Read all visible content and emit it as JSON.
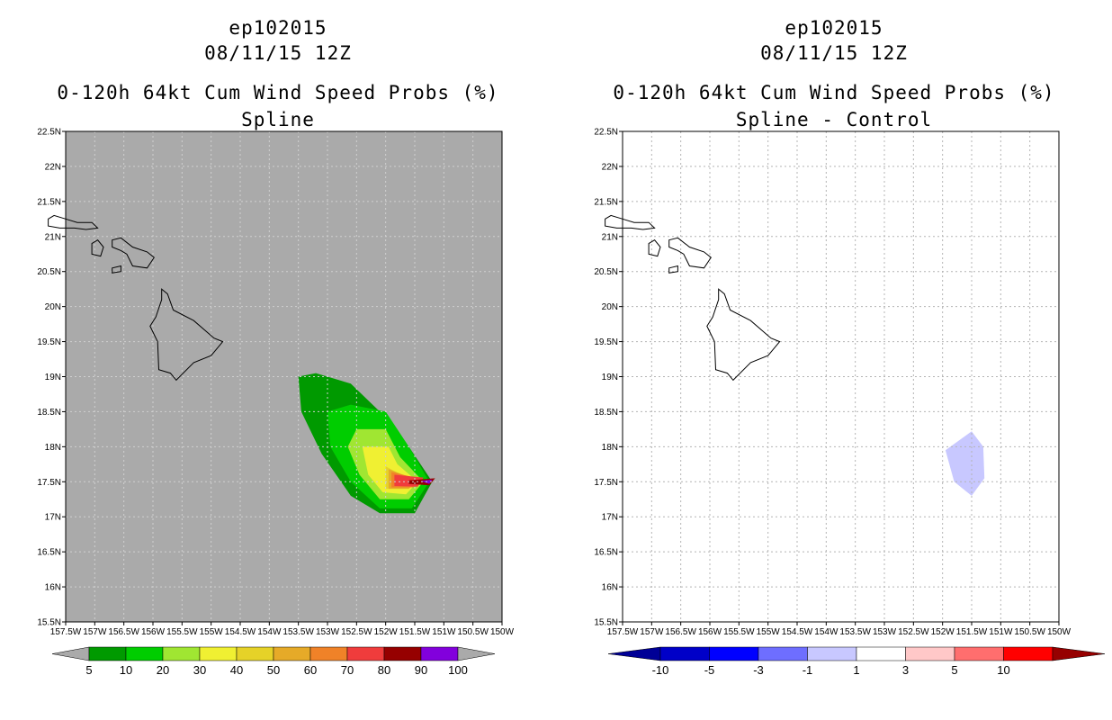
{
  "chart_data": [
    {
      "type": "contour-map",
      "title": [
        "ep102015",
        "08/11/15 12Z",
        "0-120h 64kt Cum Wind Speed Probs (%)",
        "Spline"
      ],
      "xlim": [
        -157.5,
        -150.0
      ],
      "ylim": [
        15.5,
        22.5
      ],
      "xticks": [
        -157.5,
        -157.0,
        -156.5,
        -156.0,
        -155.5,
        -155.0,
        -154.5,
        -154.0,
        -153.5,
        -153.0,
        -152.5,
        -152.0,
        -151.5,
        -151.0,
        -150.5,
        -150.0
      ],
      "xtick_labels": [
        "157.5W",
        "157W",
        "156.5W",
        "156W",
        "155.5W",
        "155W",
        "154.5W",
        "154W",
        "153.5W",
        "153W",
        "152.5W",
        "152W",
        "151.5W",
        "151W",
        "150.5W",
        "150W"
      ],
      "yticks": [
        15.5,
        16.0,
        16.5,
        17.0,
        17.5,
        18.0,
        18.5,
        19.0,
        19.5,
        20.0,
        20.5,
        21.0,
        21.5,
        22.0,
        22.5
      ],
      "ytick_labels": [
        "15.5N",
        "16N",
        "16.5N",
        "17N",
        "17.5N",
        "18N",
        "18.5N",
        "19N",
        "19.5N",
        "20N",
        "20.5N",
        "21N",
        "21.5N",
        "22N",
        "22.5N"
      ],
      "background": "#aaaaaa",
      "colorbar": {
        "labels": [
          "5",
          "10",
          "20",
          "30",
          "40",
          "50",
          "60",
          "70",
          "80",
          "90",
          "100"
        ],
        "colors": [
          "#009a00",
          "#00cd00",
          "#a0e632",
          "#f0f032",
          "#e6d228",
          "#e6aa28",
          "#f08228",
          "#f03c3c",
          "#960000",
          "#8200dc"
        ],
        "end_color": "#aaaaaa"
      },
      "contours": [
        {
          "level": 5,
          "color": "#009a00",
          "points": [
            [
              -153.5,
              19.0
            ],
            [
              -153.2,
              19.05
            ],
            [
              -152.6,
              18.9
            ],
            [
              -152.1,
              18.5
            ],
            [
              -151.6,
              18.0
            ],
            [
              -151.2,
              17.5
            ],
            [
              -151.5,
              17.05
            ],
            [
              -152.1,
              17.05
            ],
            [
              -152.6,
              17.3
            ],
            [
              -153.1,
              17.9
            ],
            [
              -153.45,
              18.5
            ]
          ]
        },
        {
          "level": 10,
          "color": "#00cd00",
          "points": [
            [
              -153.0,
              18.5
            ],
            [
              -152.6,
              18.6
            ],
            [
              -152.0,
              18.5
            ],
            [
              -151.6,
              18.0
            ],
            [
              -151.25,
              17.5
            ],
            [
              -151.55,
              17.12
            ],
            [
              -152.1,
              17.12
            ],
            [
              -152.6,
              17.5
            ],
            [
              -152.95,
              18.0
            ]
          ]
        },
        {
          "level": 20,
          "color": "#a0e632",
          "points": [
            [
              -152.5,
              18.25
            ],
            [
              -152.0,
              18.25
            ],
            [
              -151.75,
              17.85
            ],
            [
              -151.35,
              17.5
            ],
            [
              -151.6,
              17.25
            ],
            [
              -152.1,
              17.25
            ],
            [
              -152.45,
              17.6
            ],
            [
              -152.65,
              18.0
            ]
          ]
        },
        {
          "level": 30,
          "color": "#f0f032",
          "points": [
            [
              -152.4,
              18.0
            ],
            [
              -151.95,
              18.0
            ],
            [
              -151.8,
              17.75
            ],
            [
              -151.45,
              17.5
            ],
            [
              -151.65,
              17.32
            ],
            [
              -152.05,
              17.35
            ],
            [
              -152.3,
              17.6
            ]
          ]
        },
        {
          "level": 40,
          "color": "#e6d228",
          "points": [
            [
              -152.0,
              17.72
            ],
            [
              -151.5,
              17.5
            ],
            [
              -151.7,
              17.4
            ],
            [
              -152.0,
              17.4
            ]
          ]
        },
        {
          "level": 50,
          "color": "#e6aa28",
          "points": [
            [
              -151.95,
              17.68
            ],
            [
              -151.45,
              17.52
            ],
            [
              -151.6,
              17.4
            ],
            [
              -151.95,
              17.4
            ]
          ]
        },
        {
          "level": 60,
          "color": "#f08228",
          "points": [
            [
              -151.9,
              17.64
            ],
            [
              -151.4,
              17.54
            ],
            [
              -151.52,
              17.42
            ],
            [
              -151.9,
              17.42
            ]
          ]
        },
        {
          "level": 70,
          "color": "#f03c3c",
          "points": [
            [
              -151.85,
              17.6
            ],
            [
              -151.35,
              17.56
            ],
            [
              -151.45,
              17.43
            ],
            [
              -151.85,
              17.44
            ]
          ]
        },
        {
          "level": 80,
          "color": "#960000",
          "points": [
            [
              -151.6,
              17.52
            ],
            [
              -151.15,
              17.55
            ],
            [
              -151.25,
              17.45
            ],
            [
              -151.6,
              17.47
            ]
          ]
        },
        {
          "level": 90,
          "color": "#8200dc",
          "points": [
            [
              -151.4,
              17.51
            ],
            [
              -151.2,
              17.53
            ],
            [
              -151.25,
              17.47
            ]
          ]
        }
      ]
    },
    {
      "type": "contour-map",
      "title": [
        "ep102015",
        "08/11/15 12Z",
        "0-120h 64kt Cum Wind Speed Probs (%)",
        "Spline - Control"
      ],
      "xlim": [
        -157.5,
        -150.0
      ],
      "ylim": [
        15.5,
        22.5
      ],
      "xtick_labels": [
        "157.5W",
        "157W",
        "156.5W",
        "156W",
        "155.5W",
        "155W",
        "154.5W",
        "154W",
        "153.5W",
        "153W",
        "152.5W",
        "152W",
        "151.5W",
        "151W",
        "150.5W",
        "150W"
      ],
      "ytick_labels": [
        "15.5N",
        "16N",
        "16.5N",
        "17N",
        "17.5N",
        "18N",
        "18.5N",
        "19N",
        "19.5N",
        "20N",
        "20.5N",
        "21N",
        "21.5N",
        "22N",
        "22.5N"
      ],
      "background": "#ffffff",
      "colorbar": {
        "labels": [
          "-10",
          "-5",
          "-3",
          "-1",
          "1",
          "3",
          "5",
          "10"
        ],
        "colors": [
          "#0000c8",
          "#0000ff",
          "#6e6eff",
          "#c8c8ff",
          "#ffffff",
          "#ffc8c8",
          "#ff6e6e",
          "#ff0000"
        ],
        "end_left": "#000096",
        "end_right": "#960000"
      },
      "contours": [
        {
          "level": -3,
          "color": "#c8c8ff",
          "points": [
            [
              -151.95,
              17.95
            ],
            [
              -151.5,
              18.22
            ],
            [
              -151.3,
              18.0
            ],
            [
              -151.28,
              17.55
            ],
            [
              -151.5,
              17.3
            ],
            [
              -151.8,
              17.5
            ]
          ]
        }
      ]
    }
  ],
  "coastlines": [
    [
      [
        -157.8,
        21.25
      ],
      [
        -157.7,
        21.3
      ],
      [
        -157.5,
        21.25
      ],
      [
        -157.3,
        21.2
      ],
      [
        -157.05,
        21.2
      ],
      [
        -156.95,
        21.12
      ],
      [
        -157.15,
        21.1
      ],
      [
        -157.35,
        21.12
      ],
      [
        -157.6,
        21.12
      ],
      [
        -157.8,
        21.15
      ]
    ],
    [
      [
        -157.05,
        20.9
      ],
      [
        -156.95,
        20.95
      ],
      [
        -156.85,
        20.85
      ],
      [
        -156.9,
        20.72
      ],
      [
        -157.05,
        20.75
      ]
    ],
    [
      [
        -156.7,
        20.95
      ],
      [
        -156.55,
        20.98
      ],
      [
        -156.35,
        20.85
      ],
      [
        -156.1,
        20.78
      ],
      [
        -155.98,
        20.7
      ],
      [
        -156.1,
        20.55
      ],
      [
        -156.35,
        20.58
      ],
      [
        -156.45,
        20.75
      ],
      [
        -156.55,
        20.8
      ],
      [
        -156.7,
        20.85
      ]
    ],
    [
      [
        -156.7,
        20.55
      ],
      [
        -156.55,
        20.58
      ],
      [
        -156.55,
        20.5
      ],
      [
        -156.7,
        20.48
      ]
    ],
    [
      [
        -155.85,
        20.25
      ],
      [
        -155.75,
        20.18
      ],
      [
        -155.65,
        19.95
      ],
      [
        -155.3,
        19.8
      ],
      [
        -154.95,
        19.55
      ],
      [
        -154.8,
        19.5
      ],
      [
        -155.0,
        19.3
      ],
      [
        -155.3,
        19.2
      ],
      [
        -155.6,
        18.95
      ],
      [
        -155.7,
        19.05
      ],
      [
        -155.9,
        19.1
      ],
      [
        -155.92,
        19.5
      ],
      [
        -156.05,
        19.72
      ],
      [
        -155.95,
        19.85
      ],
      [
        -155.85,
        20.1
      ]
    ]
  ]
}
